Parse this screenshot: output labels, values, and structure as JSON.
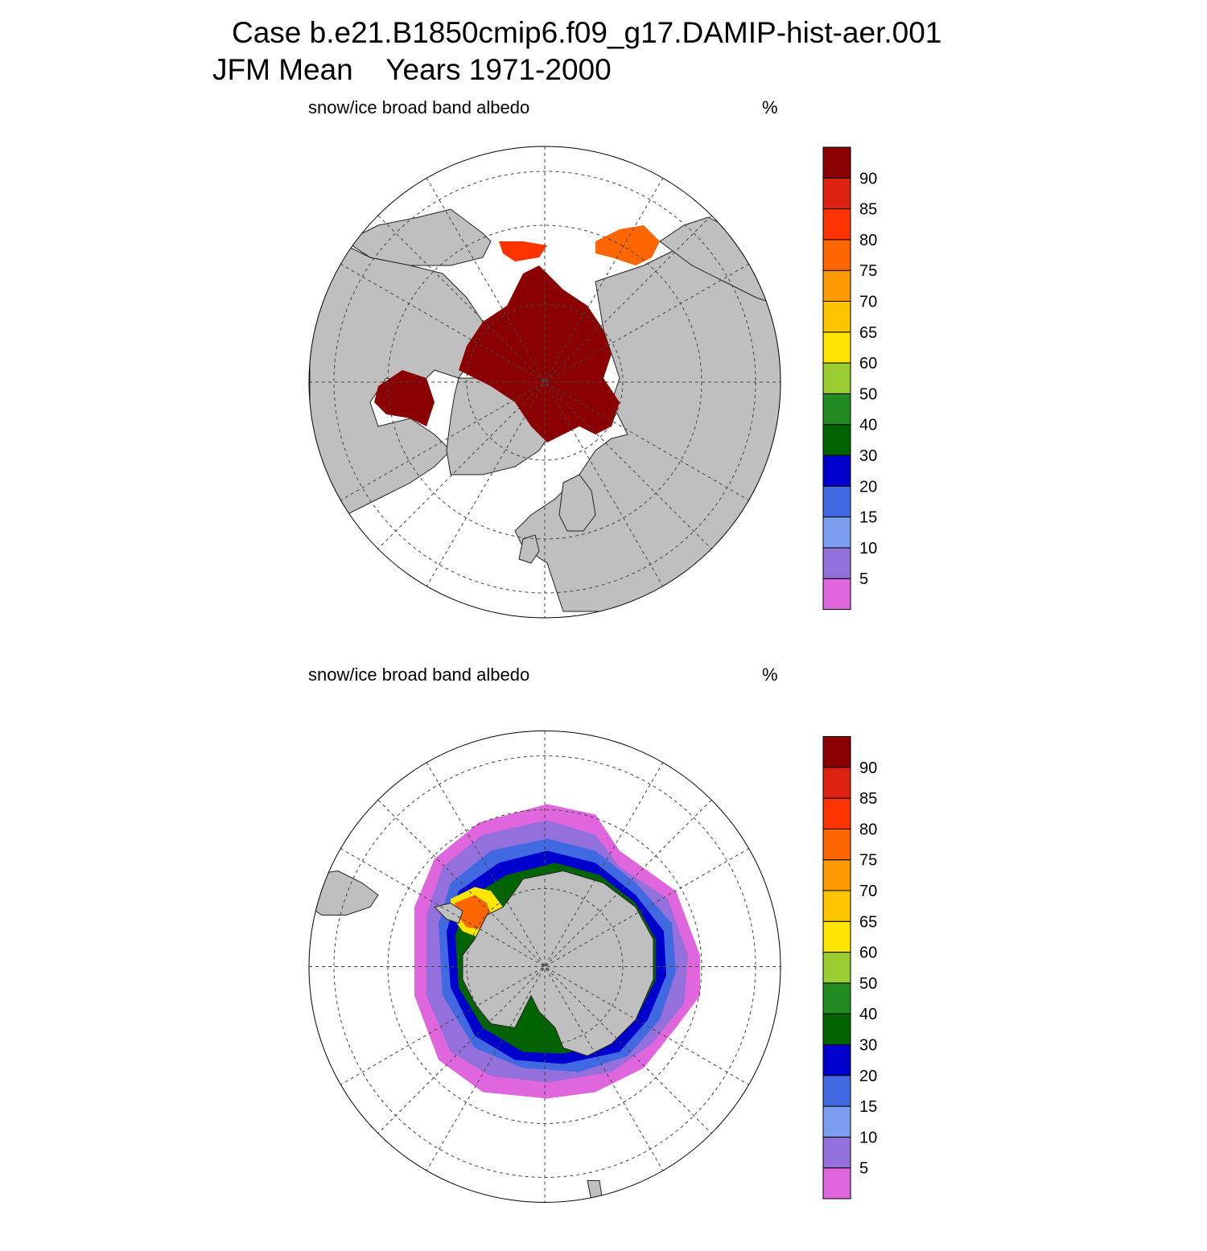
{
  "header": {
    "case_line": "Case b.e21.B1850cmip6.f09_g17.DAMIP-hist-aer.001",
    "period_line": "JFM Mean    Years 1971-2000"
  },
  "colors": {
    "land": "#bfbfbf",
    "ocean": "#ffffff",
    "graticule": "#444444",
    "levels": [
      "#e066dd",
      "#9370db",
      "#7b9ef0",
      "#4169e1",
      "#0000cd",
      "#006400",
      "#228b22",
      "#9acd32",
      "#ffe600",
      "#ffc400",
      "#ff9900",
      "#ff6600",
      "#ff3300",
      "#dd2211",
      "#8b0000"
    ]
  },
  "panels": [
    {
      "id": "north",
      "variable": "snow/ice broad band albedo",
      "units": "%",
      "hemisphere": "Northern",
      "colorbar_labels": [
        "5",
        "10",
        "15",
        "20",
        "30",
        "40",
        "50",
        "60",
        "65",
        "70",
        "75",
        "80",
        "85",
        "90"
      ]
    },
    {
      "id": "south",
      "variable": "snow/ice broad band albedo",
      "units": "%",
      "hemisphere": "Southern",
      "colorbar_labels": [
        "5",
        "10",
        "15",
        "20",
        "30",
        "40",
        "50",
        "60",
        "65",
        "70",
        "75",
        "80",
        "85",
        "90"
      ]
    }
  ]
}
